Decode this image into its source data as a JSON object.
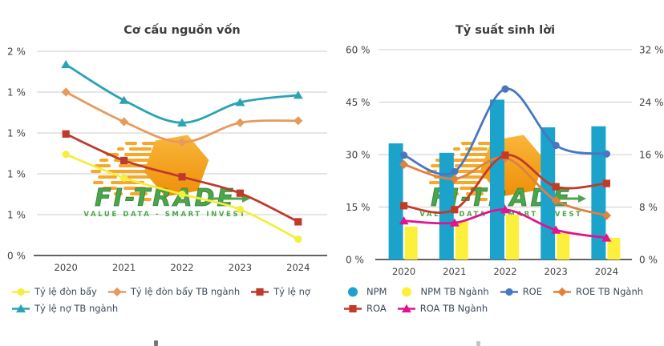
{
  "app": {
    "background": "#ffffff",
    "title_color": "#3d3d3d",
    "tick_text_color": "#3f3f3f",
    "legend_text_color": "#3a4a5a",
    "grid_color": "#cdcdcd",
    "axis_line_color": "#2f2f2f"
  },
  "watermark": {
    "brand": "FI-TRADE",
    "tagline": "VALUE DATA - SMART INVEST",
    "green": "#4ca44c",
    "green_dark": "#2f7d33",
    "hex_top": "#f9b63b",
    "hex_bottom": "#ee8f07",
    "dash_color": "#f7a829"
  },
  "chart_data": [
    {
      "type": "line",
      "title": "Cơ cấu nguồn vốn",
      "categories": [
        "2020",
        "2021",
        "2022",
        "2023",
        "2024"
      ],
      "xlabel": "",
      "ylabel": "",
      "grid": true,
      "legend_position": "bottom-left",
      "y_axis": {
        "tick_labels": [
          "2 %",
          "1 %",
          "1 %",
          "1 %",
          "1 %",
          "0 %"
        ],
        "tick_values": [
          2,
          1.6,
          1.2,
          0.8,
          0.4,
          0
        ],
        "min": 0,
        "max": 2
      },
      "series": [
        {
          "name": "Tỷ lệ đòn bẩy",
          "color": "#f5ee3d",
          "marker": "circle",
          "values": [
            0.99,
            0.76,
            0.6,
            0.45,
            0.16
          ]
        },
        {
          "name": "Tỷ lệ đòn bẩy TB ngành",
          "color": "#e69a5d",
          "marker": "diamond",
          "values": [
            1.6,
            1.31,
            1.11,
            1.3,
            1.32
          ]
        },
        {
          "name": "Tỷ lệ nợ",
          "color": "#bf392d",
          "marker": "square",
          "values": [
            1.19,
            0.93,
            0.77,
            0.61,
            0.33
          ]
        },
        {
          "name": "Tỷ lệ nợ TB ngành",
          "color": "#2aa3b5",
          "marker": "triangle",
          "values": [
            1.87,
            1.52,
            1.3,
            1.5,
            1.57
          ]
        }
      ]
    },
    {
      "type": "bar+line",
      "title": "Tỷ suất sinh lời",
      "categories": [
        "2020",
        "2021",
        "2022",
        "2023",
        "2024"
      ],
      "xlabel": "",
      "grid": true,
      "legend_position": "bottom-left",
      "left_axis": {
        "tick_labels": [
          "60 %",
          "45 %",
          "30 %",
          "15 %",
          "0 %"
        ],
        "tick_values": [
          60,
          45,
          30,
          15,
          0
        ],
        "min": 0,
        "max": 60
      },
      "right_axis": {
        "tick_labels": [
          "32 %",
          "24 %",
          "16 %",
          "8 %",
          "0 %"
        ],
        "tick_values": [
          32,
          24,
          16,
          8,
          0
        ],
        "min": 0,
        "max": 32
      },
      "bar_series": [
        {
          "name": "NPM",
          "color": "#1ba3cb",
          "axis": "left",
          "values": [
            33.2,
            30.5,
            45.7,
            37.8,
            38.1
          ]
        },
        {
          "name": "NPM TB Ngành",
          "color": "#fdf03c",
          "axis": "left",
          "values": [
            9.4,
            11.0,
            12.8,
            7.6,
            6.2
          ]
        }
      ],
      "line_series": [
        {
          "name": "ROE",
          "color": "#4a76c0",
          "marker": "circle",
          "axis": "right",
          "values": [
            15.9,
            13.4,
            26.0,
            17.4,
            16.1
          ]
        },
        {
          "name": "ROE TB Ngành",
          "color": "#e0813e",
          "marker": "diamond",
          "axis": "right",
          "values": [
            14.5,
            12.3,
            15.5,
            9.0,
            6.7
          ]
        },
        {
          "name": "ROA",
          "color": "#c23a28",
          "marker": "square",
          "axis": "right",
          "values": [
            8.2,
            7.6,
            15.9,
            11.1,
            11.6
          ]
        },
        {
          "name": "ROA TB Ngành",
          "color": "#e0148e",
          "marker": "triangle",
          "axis": "right",
          "values": [
            5.9,
            5.6,
            7.6,
            4.5,
            3.3
          ]
        }
      ]
    }
  ]
}
